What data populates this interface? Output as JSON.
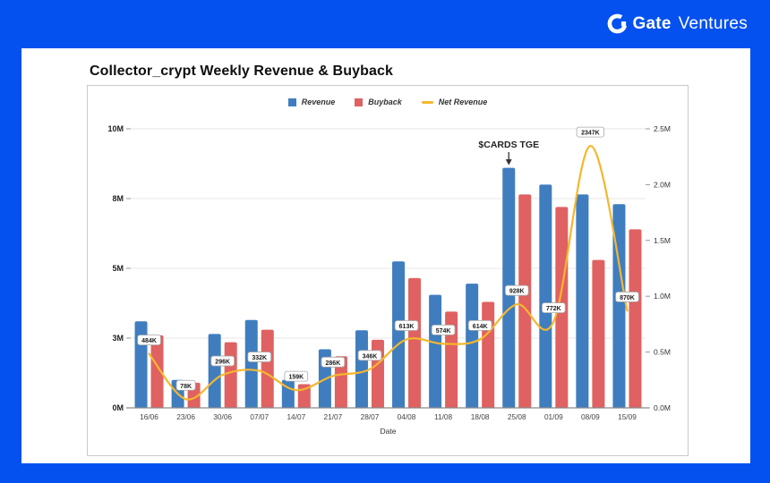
{
  "brand": {
    "name_bold": "Gate",
    "name_light": "Ventures",
    "bg_color": "#0451f0",
    "icon": "gate-ring-icon"
  },
  "card": {
    "title": "Collector_crypt Weekly Revenue & Buyback"
  },
  "chart_data": {
    "type": "bar",
    "subtype": "grouped-bars-with-line",
    "title": "Collector_crypt Weekly Revenue & Buyback",
    "xlabel": "Date",
    "categories": [
      "16/06",
      "23/06",
      "30/06",
      "07/07",
      "14/07",
      "21/07",
      "28/07",
      "04/08",
      "11/08",
      "18/08",
      "25/08",
      "01/09",
      "08/09",
      "15/09"
    ],
    "series": [
      {
        "name": "Revenue",
        "type": "bar",
        "axis": "left",
        "color": "#3f7dbf",
        "values_M": [
          3.1,
          1.0,
          2.65,
          3.15,
          1.0,
          2.1,
          2.78,
          5.25,
          4.05,
          4.45,
          8.6,
          8.0,
          7.65,
          7.3
        ]
      },
      {
        "name": "Buyback",
        "type": "bar",
        "axis": "left",
        "color": "#e06161",
        "values_M": [
          2.6,
          0.9,
          2.35,
          2.8,
          0.85,
          1.85,
          2.44,
          4.65,
          3.45,
          3.8,
          7.65,
          7.2,
          5.3,
          6.4
        ]
      },
      {
        "name": "Net Revenue",
        "type": "line",
        "axis": "right",
        "color": "#f5b72d",
        "values_K": [
          484,
          78,
          296,
          332,
          159,
          286,
          346,
          613,
          574,
          614,
          928,
          772,
          2347,
          870
        ],
        "point_labels": [
          "484K",
          "78K",
          "296K",
          "332K",
          "159K",
          "286K",
          "346K",
          "613K",
          "574K",
          "614K",
          "928K",
          "772K",
          "2347K",
          "870K"
        ]
      }
    ],
    "left_axis": {
      "min": 0,
      "max": 10,
      "tick_labels": [
        "0M",
        "3M",
        "5M",
        "8M",
        "10M"
      ]
    },
    "right_axis": {
      "min": 0,
      "max": 2.5,
      "tick_labels": [
        "0.0M",
        "0.5M",
        "1.0M",
        "1.5M",
        "2.0M",
        "2.5M"
      ]
    },
    "grid": true,
    "legend_position": "top-center",
    "annotation": {
      "text": "$CARDS TGE",
      "target_category": "25/08",
      "target_series": "Revenue"
    },
    "colors": {
      "gridline": "#e7e7e7",
      "axis_line": "#8a8a8a",
      "label_box_border": "#a8a8a8",
      "text": "#333333"
    }
  }
}
